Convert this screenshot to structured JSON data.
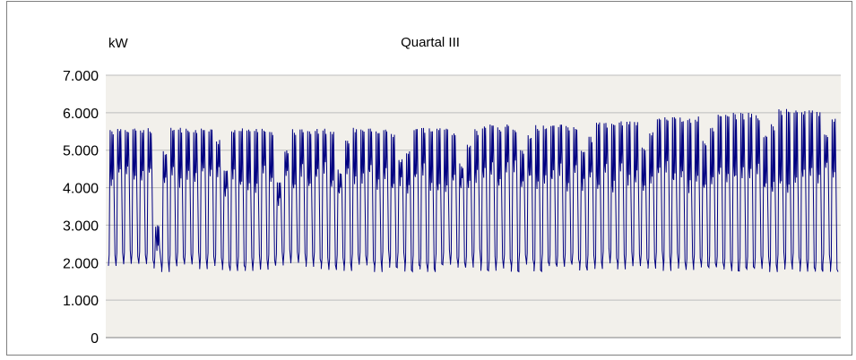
{
  "chart_data": {
    "type": "line",
    "title": "Quartal III",
    "ylabel": "kW",
    "xlabel": "",
    "ylim": [
      0,
      7000
    ],
    "yticks": [
      0,
      1000,
      2000,
      3000,
      4000,
      5000,
      6000,
      7000
    ],
    "ytick_labels": [
      "0",
      "1.000",
      "2.000",
      "3.000",
      "4.000",
      "5.000",
      "6.000",
      "7.000"
    ],
    "x_tick_labels": [],
    "grid": "horizontal",
    "legend": "none",
    "plot_background": "#f2f0eb",
    "series": [
      {
        "color": "#000080",
        "approx_daily_peaks_kw": [
          5600,
          5600,
          5550,
          5600,
          5600,
          5600,
          3000,
          5000,
          5600,
          5600,
          5600,
          5550,
          5600,
          5600,
          5300,
          4500,
          5600,
          5600,
          5600,
          5600,
          5600,
          5500,
          4200,
          5000,
          5600,
          5600,
          5600,
          5600,
          5600,
          5500,
          4500,
          5300,
          5600,
          5600,
          5600,
          5600,
          5600,
          5500,
          4800,
          5000,
          5600,
          5600,
          5600,
          5600,
          5600,
          5500,
          4700,
          5200,
          5600,
          5650,
          5700,
          5650,
          5700,
          5600,
          5000,
          5400,
          5700,
          5700,
          5700,
          5700,
          5700,
          5700,
          5000,
          5400,
          5800,
          5800,
          5800,
          5800,
          5800,
          5800,
          5100,
          5500,
          5900,
          5900,
          5900,
          5900,
          5900,
          5900,
          5300,
          5600,
          6000,
          6000,
          6000,
          6000,
          6000,
          5950,
          5400,
          5700,
          6100,
          6100,
          6100,
          6100,
          6100,
          6050,
          5500,
          5900
        ],
        "approx_daily_minimum_kw": 1800
      }
    ]
  }
}
